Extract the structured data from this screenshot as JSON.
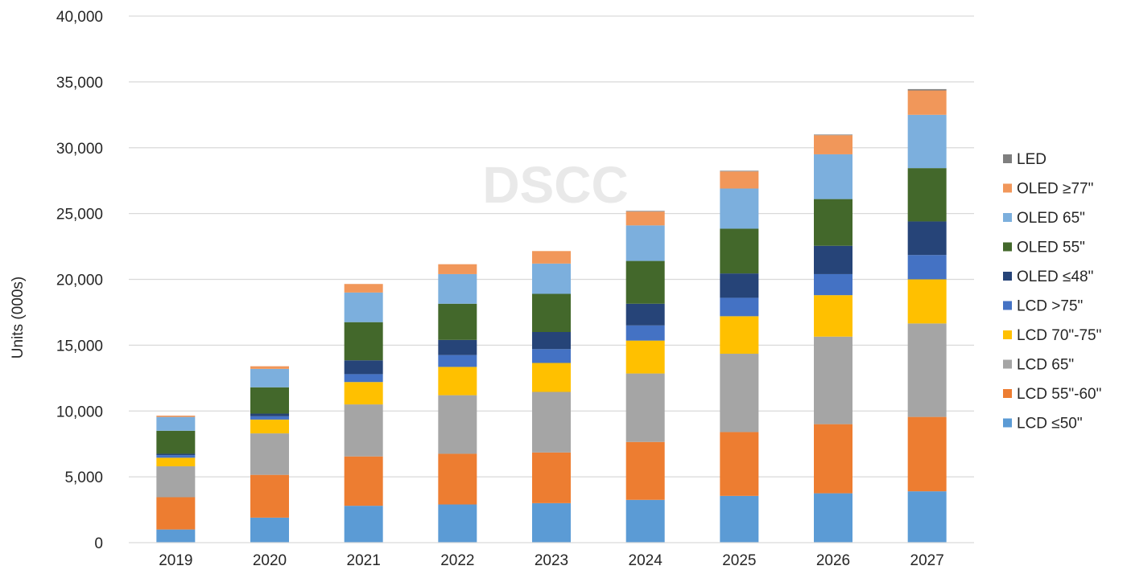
{
  "watermark": "DSCC",
  "colors": {
    "LCD ≤50\"": "#5b9bd5",
    "LCD 55\"-60\"": "#ed7d31",
    "LCD 65\"": "#a5a5a5",
    "LCD 70\"-75\"": "#ffc000",
    "LCD >75\"": "#4472c4",
    "OLED ≤48\"": "#264478",
    "OLED 55\"": "#43682b",
    "OLED 65\"": "#7cafdd",
    "OLED ≥77\"": "#f1975a",
    "LED": "#7f7f7f"
  },
  "chart_data": {
    "type": "bar",
    "stacked": true,
    "title": "",
    "xlabel": "",
    "ylabel": "Units (000s)",
    "ylim": [
      0,
      40000
    ],
    "yticks": [
      0,
      5000,
      10000,
      15000,
      20000,
      25000,
      30000,
      35000,
      40000
    ],
    "ytick_labels": [
      "0",
      "5,000",
      "10,000",
      "15,000",
      "20,000",
      "25,000",
      "30,000",
      "35,000",
      "40,000"
    ],
    "grid": true,
    "legend_position": "right",
    "categories": [
      "2019",
      "2020",
      "2021",
      "2022",
      "2023",
      "2024",
      "2025",
      "2026",
      "2027"
    ],
    "series": [
      {
        "name": "LCD  ≤50\"",
        "values": [
          1000,
          1900,
          2800,
          2900,
          3000,
          3250,
          3550,
          3750,
          3900
        ]
      },
      {
        "name": "LCD 55\"-60\"",
        "values": [
          2450,
          3250,
          3750,
          3850,
          3850,
          4400,
          4850,
          5250,
          5650
        ]
      },
      {
        "name": "LCD 65\"",
        "values": [
          2350,
          3150,
          3950,
          4450,
          4600,
          5200,
          5950,
          6650,
          7100
        ]
      },
      {
        "name": "LCD 70\"-75\"",
        "values": [
          650,
          1050,
          1700,
          2150,
          2200,
          2500,
          2850,
          3150,
          3350
        ]
      },
      {
        "name": "LCD >75\"",
        "values": [
          200,
          250,
          600,
          900,
          1050,
          1150,
          1400,
          1600,
          1850
        ]
      },
      {
        "name": "OLED  ≤48\"",
        "values": [
          100,
          200,
          1050,
          1150,
          1300,
          1650,
          1850,
          2150,
          2550
        ]
      },
      {
        "name": "OLED 55\"",
        "values": [
          1750,
          2000,
          2900,
          2750,
          2900,
          3250,
          3400,
          3550,
          4050
        ]
      },
      {
        "name": "OLED 65\"",
        "values": [
          1050,
          1400,
          2250,
          2250,
          2300,
          2700,
          3050,
          3400,
          4050
        ]
      },
      {
        "name": "OLED ≥77\"",
        "values": [
          100,
          200,
          650,
          750,
          950,
          1050,
          1300,
          1450,
          1850
        ]
      },
      {
        "name": "LED",
        "values": [
          0,
          0,
          0,
          0,
          0,
          50,
          50,
          50,
          100
        ]
      }
    ],
    "legend_order": [
      "LED",
      "OLED ≥77\"",
      "OLED 65\"",
      "OLED 55\"",
      "OLED  ≤48\"",
      "LCD >75\"",
      "LCD 70\"-75\"",
      "LCD 65\"",
      "LCD 55\"-60\"",
      "LCD  ≤50\""
    ]
  }
}
